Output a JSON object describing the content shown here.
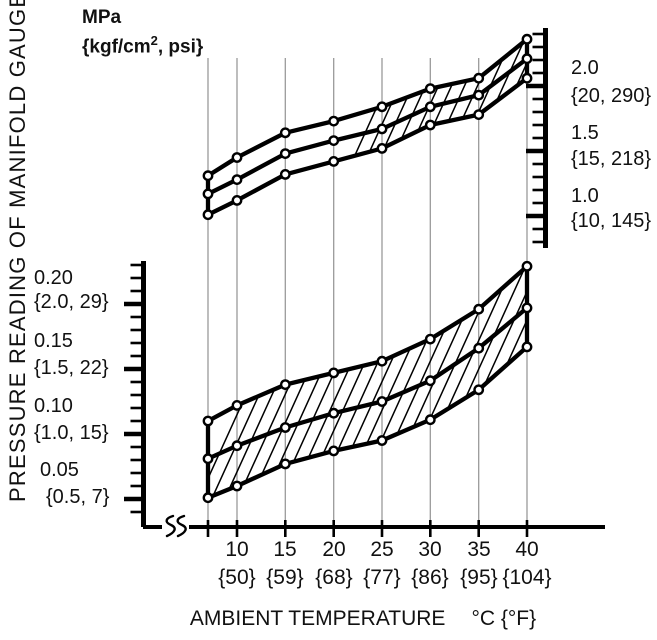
{
  "pressure_unit": {
    "primary": "MPa",
    "secondary_open": "{kgf/cm",
    "secondary_sup": "2",
    "secondary_close": ", psi}"
  },
  "y_axis_label": "PRESSURE READING OF MANIFOLD GAUGE",
  "x_axis": {
    "label": "AMBIENT TEMPERATURE",
    "unit": "°C {°F}",
    "ticks": [
      {
        "c": "10",
        "f": "{50}"
      },
      {
        "c": "15",
        "f": "{59}"
      },
      {
        "c": "20",
        "f": "{68}"
      },
      {
        "c": "25",
        "f": "{77}"
      },
      {
        "c": "30",
        "f": "{86}"
      },
      {
        "c": "35",
        "f": "{95}"
      },
      {
        "c": "40",
        "f": "{104}"
      }
    ]
  },
  "right_axis": {
    "labels": [
      {
        "mpa": "2.0",
        "alt": "{20, 290}"
      },
      {
        "mpa": "1.5",
        "alt": "{15, 218}"
      },
      {
        "mpa": "1.0",
        "alt": "{10, 145}"
      }
    ]
  },
  "left_axis": {
    "labels": [
      {
        "mpa": "0.20",
        "alt": "{2.0, 29}"
      },
      {
        "mpa": "0.15",
        "alt": "{1.5, 22}"
      },
      {
        "mpa": "0.10",
        "alt": "{1.0, 15}"
      },
      {
        "mpa": "0.05",
        "alt": "{0.5, 7}"
      }
    ]
  },
  "chart_data": {
    "type": "area",
    "title": "Pressure reading of manifold gauge vs ambient temperature, MPa {kgf/cm2, psi}",
    "xlabel": "AMBIENT TEMPERATURE °C {°F}",
    "x_c": [
      7,
      10,
      15,
      20,
      25,
      30,
      35,
      40
    ],
    "x_tick_labels_c": [
      10,
      15,
      20,
      25,
      30,
      35,
      40
    ],
    "x_tick_labels_f": [
      50,
      59,
      68,
      77,
      86,
      95,
      104
    ],
    "note": "leftmost data column (~7 °C) is unlabeled on the axis; bands are hatched ranges with upper/middle/lower polylines and circle markers",
    "grid": true,
    "bands": [
      {
        "name": "high-pressure-gauge-band",
        "unit": "MPa",
        "axis": "right",
        "axis_range": [
          0.8,
          2.4
        ],
        "axis_major_ticks": [
          1.0,
          1.5,
          2.0
        ],
        "axis_major_alt_labels": [
          "{10, 145}",
          "{15, 218}",
          "{20, 290}"
        ],
        "axis_minor_step": 0.1,
        "upper": [
          1.31,
          1.45,
          1.64,
          1.73,
          1.84,
          1.98,
          2.06,
          2.36
        ],
        "middle": [
          1.17,
          1.28,
          1.48,
          1.58,
          1.67,
          1.84,
          1.93,
          2.21
        ],
        "lower": [
          1.01,
          1.12,
          1.32,
          1.42,
          1.52,
          1.7,
          1.78,
          2.06
        ]
      },
      {
        "name": "low-pressure-gauge-band",
        "unit": "MPa",
        "axis": "left",
        "axis_range": [
          0.04,
          0.23
        ],
        "axis_major_ticks": [
          0.05,
          0.1,
          0.15,
          0.2
        ],
        "axis_major_alt_labels": [
          "{0.5, 7}",
          "{1.0, 15}",
          "{1.5, 22}",
          "{2.0, 29}"
        ],
        "axis_minor_step": 0.01,
        "upper": [
          0.11,
          0.122,
          0.138,
          0.147,
          0.156,
          0.173,
          0.196,
          0.229
        ],
        "middle": [
          0.081,
          0.091,
          0.105,
          0.116,
          0.125,
          0.141,
          0.166,
          0.197
        ],
        "lower": [
          0.051,
          0.06,
          0.077,
          0.087,
          0.095,
          0.111,
          0.134,
          0.167
        ]
      }
    ]
  }
}
